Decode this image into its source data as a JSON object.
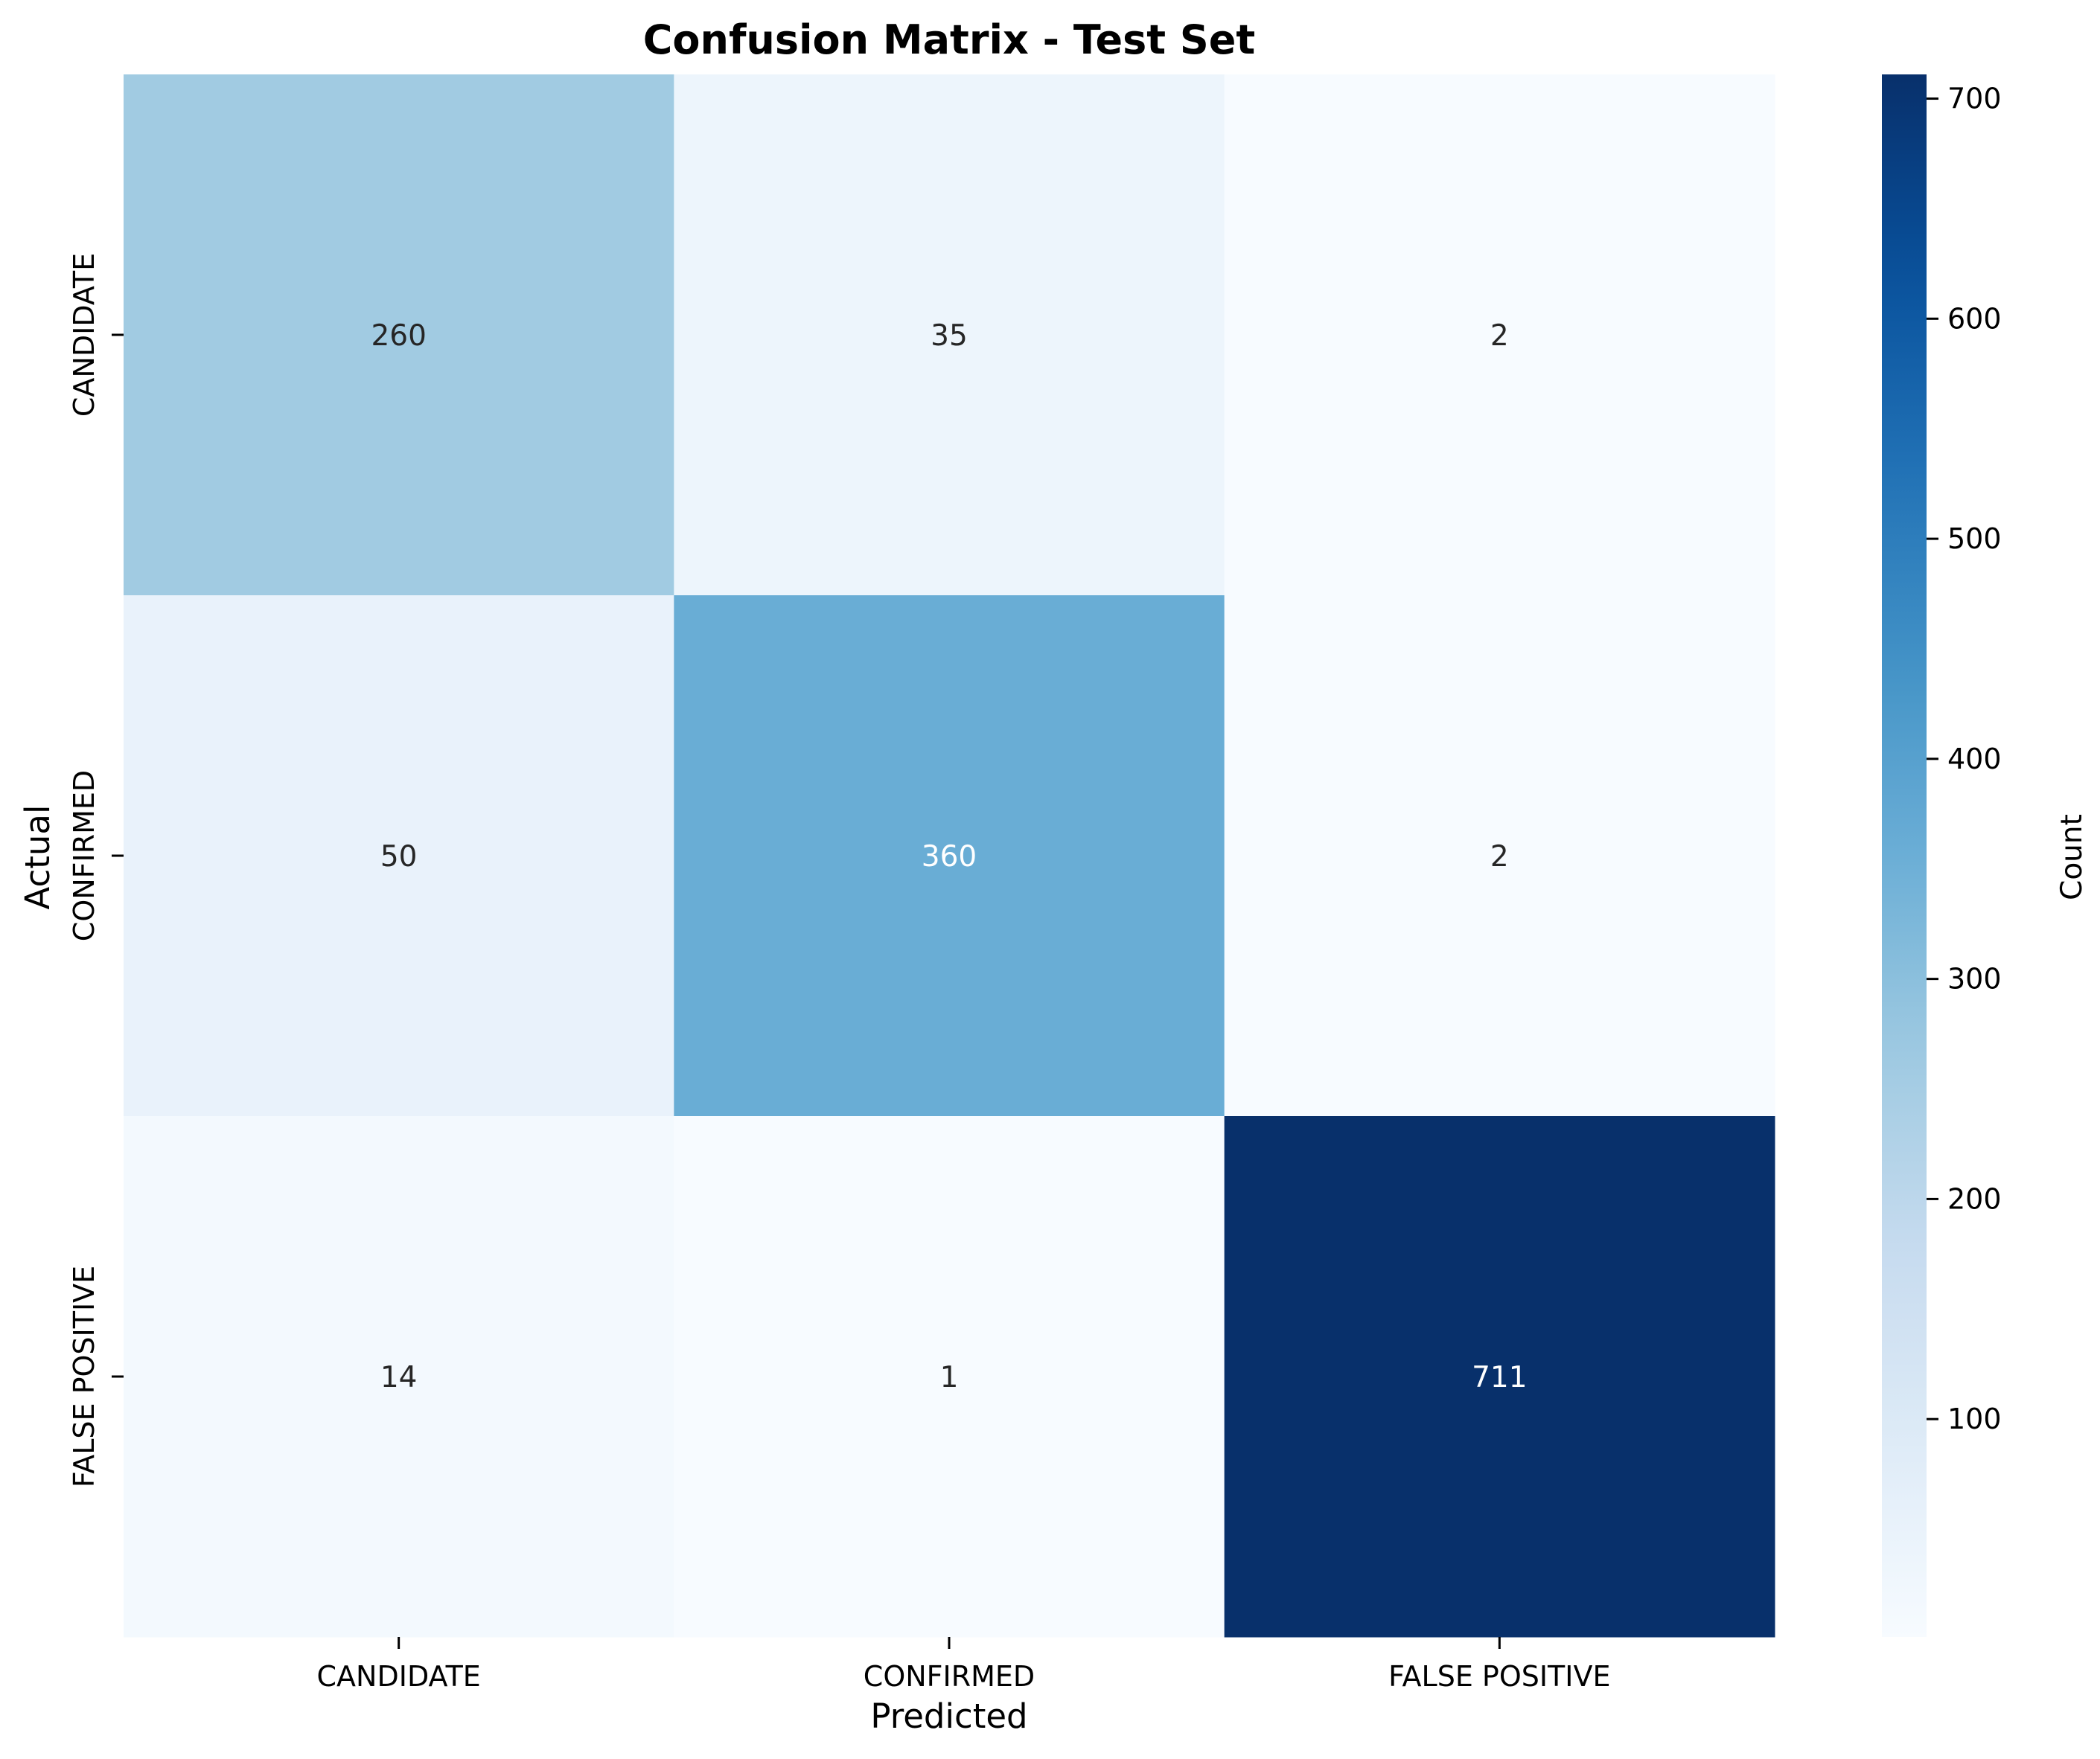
{
  "chart_data": {
    "type": "heatmap",
    "title": "Confusion Matrix - Test Set",
    "xlabel": "Predicted",
    "ylabel": "Actual",
    "x_categories": [
      "CANDIDATE",
      "CONFIRMED",
      "FALSE POSITIVE"
    ],
    "y_categories": [
      "CANDIDATE",
      "CONFIRMED",
      "FALSE POSITIVE"
    ],
    "values": [
      [
        260,
        35,
        2
      ],
      [
        50,
        360,
        2
      ],
      [
        14,
        1,
        711
      ]
    ],
    "annotations": true,
    "colormap": "Blues",
    "colorbar": {
      "label": "Count",
      "range": [
        1,
        711
      ],
      "ticks": [
        100,
        200,
        300,
        400,
        500,
        600,
        700
      ]
    },
    "grid": false
  }
}
